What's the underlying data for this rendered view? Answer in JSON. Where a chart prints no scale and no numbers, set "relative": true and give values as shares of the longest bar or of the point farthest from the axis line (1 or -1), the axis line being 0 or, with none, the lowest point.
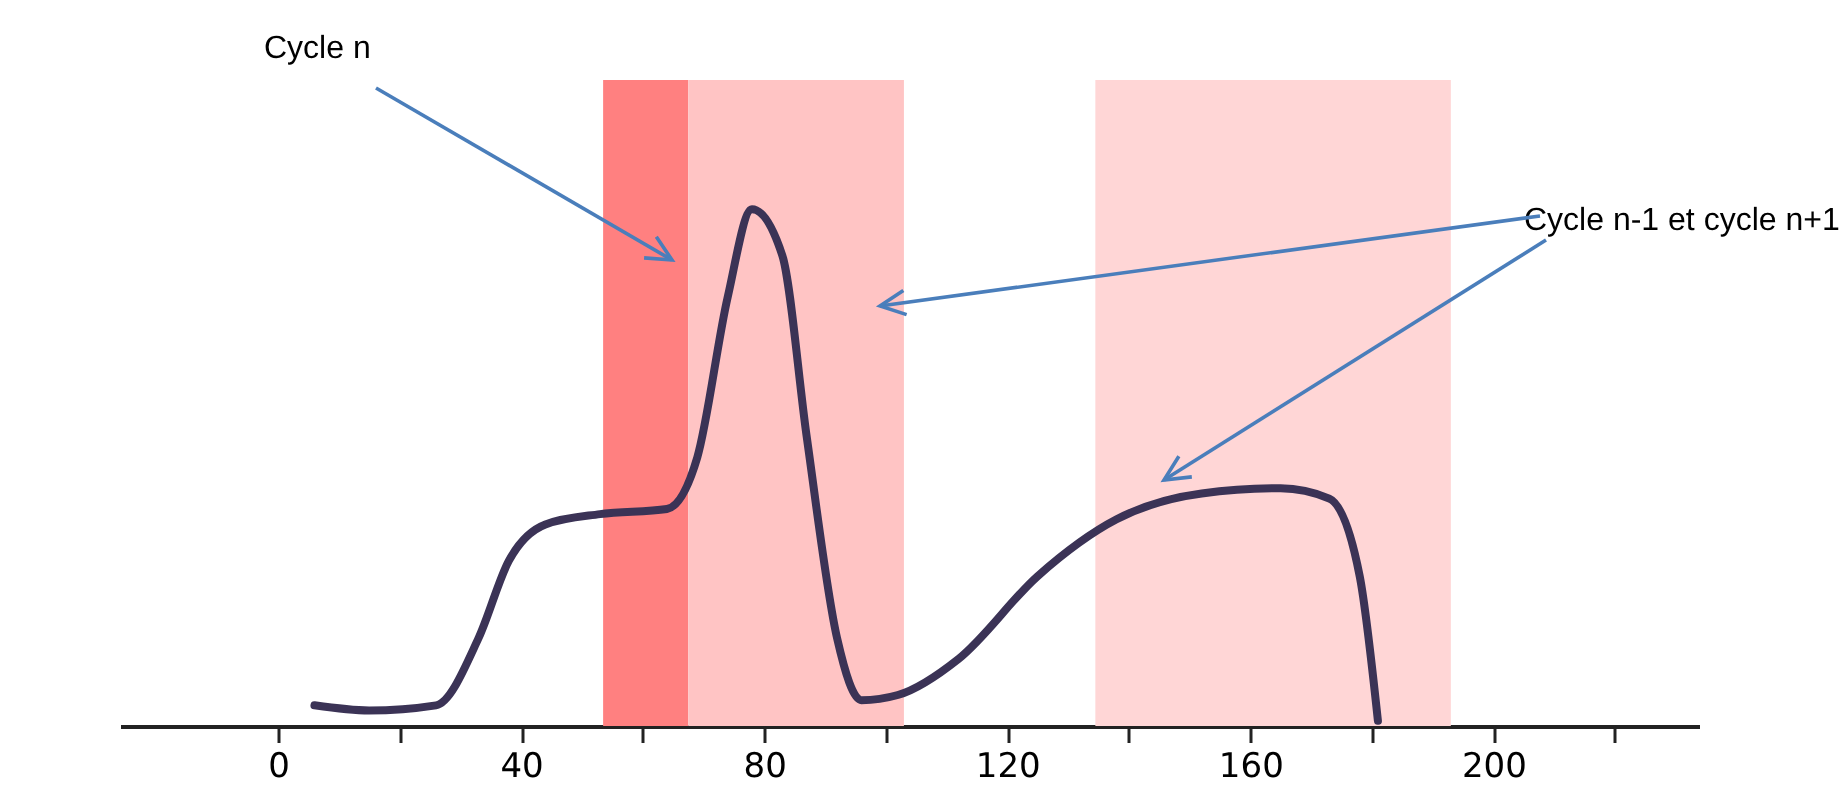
{
  "chart_data": {
    "type": "line",
    "relative": true,
    "x": [
      6,
      15,
      26,
      33,
      38,
      44,
      53,
      64,
      69,
      74,
      78,
      83,
      87,
      92,
      96,
      102,
      112,
      125,
      138,
      152,
      165,
      173,
      178,
      181
    ],
    "series": [
      {
        "color": "#3b3356",
        "values": [
          0.04,
          0.03,
          0.04,
          0.17,
          0.32,
          0.39,
          0.41,
          0.42,
          0.52,
          0.83,
          1,
          0.91,
          0.56,
          0.17,
          0.05,
          0.06,
          0.13,
          0.29,
          0.4,
          0.45,
          0.46,
          0.44,
          0.29,
          0.01
        ]
      }
    ],
    "xlim": [
      -26,
      234
    ],
    "xticks": [
      0,
      {
        "value": 20,
        "label": null
      },
      40,
      {
        "value": 60,
        "label": null
      },
      80,
      {
        "value": 100,
        "label": null
      },
      120,
      {
        "value": 140,
        "label": null
      },
      160,
      {
        "value": 180,
        "label": null
      },
      200,
      {
        "value": 220,
        "label": null
      }
    ],
    "bands": [
      {
        "axis": "x",
        "from": 53.5,
        "to": 67.5,
        "label": "Cycle n",
        "color": "#ff8080"
      },
      {
        "axis": "x",
        "from": 67.5,
        "to": 103,
        "label": "Cycle n-1 et cycle n+1",
        "color": "#ffc4c4"
      },
      {
        "axis": "x",
        "from": 134.5,
        "to": 193,
        "color": "#ffd6d6"
      }
    ],
    "marker": "none",
    "line_style": "solid"
  }
}
